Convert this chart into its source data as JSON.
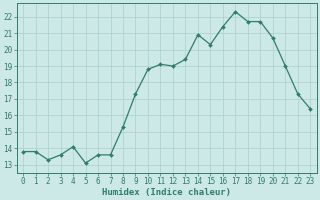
{
  "x": [
    0,
    1,
    2,
    3,
    4,
    5,
    6,
    7,
    8,
    9,
    10,
    11,
    12,
    13,
    14,
    15,
    16,
    17,
    18,
    19,
    20,
    21,
    22,
    23
  ],
  "y": [
    13.8,
    13.8,
    13.3,
    13.6,
    14.1,
    13.1,
    13.6,
    13.6,
    15.3,
    17.3,
    18.8,
    19.1,
    19.0,
    19.4,
    20.9,
    20.3,
    21.4,
    22.3,
    21.7,
    21.7,
    20.7,
    19.0,
    17.3,
    16.4
  ],
  "line_color": "#2e7d6e",
  "marker": "D",
  "markersize": 2.0,
  "linewidth": 0.9,
  "bg_color": "#cce9e7",
  "grid_color": "#aacfcc",
  "xlabel": "Humidex (Indice chaleur)",
  "xlim": [
    -0.5,
    23.5
  ],
  "ylim": [
    12.5,
    22.8
  ],
  "yticks": [
    13,
    14,
    15,
    16,
    17,
    18,
    19,
    20,
    21,
    22
  ],
  "xticks": [
    0,
    1,
    2,
    3,
    4,
    5,
    6,
    7,
    8,
    9,
    10,
    11,
    12,
    13,
    14,
    15,
    16,
    17,
    18,
    19,
    20,
    21,
    22,
    23
  ],
  "xlabel_fontsize": 6.5,
  "tick_fontsize": 5.5
}
